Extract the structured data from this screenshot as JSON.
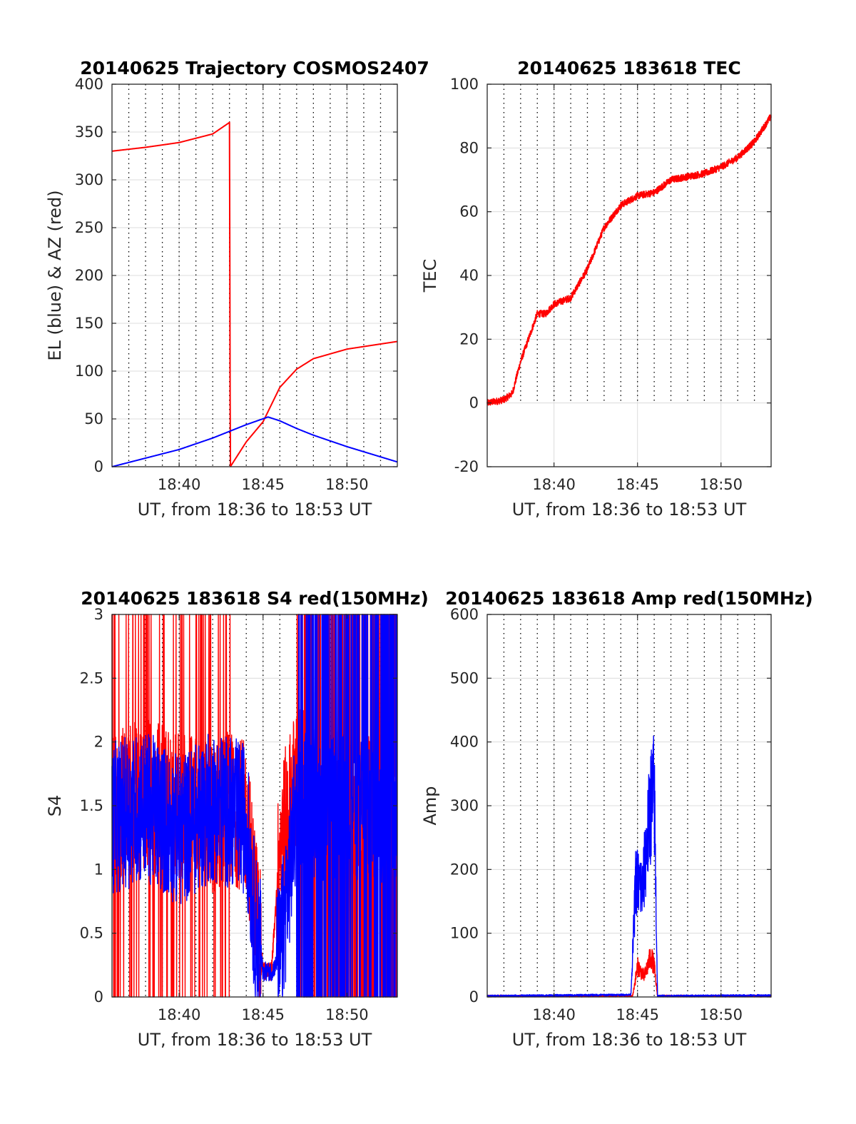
{
  "chart_data": [
    {
      "id": "traj",
      "type": "line",
      "title": "20140625 Trajectory COSMOS2407",
      "xlabel": "UT, from 18:36 to 18:53 UT",
      "ylabel": "EL (blue) & AZ (red)",
      "xlim": [
        "18:36",
        "18:53"
      ],
      "ylim": [
        0,
        400
      ],
      "yticks": [
        0,
        50,
        100,
        150,
        200,
        250,
        300,
        350,
        400
      ],
      "xticks": [
        "18:40",
        "18:45",
        "18:50"
      ],
      "grid": true,
      "colors": {
        "az": "#ff0000",
        "el": "#0000ff"
      },
      "series": [
        {
          "key": "az",
          "x": [
            "18:36",
            "18:38",
            "18:40",
            "18:42",
            "18:43",
            "18:43.05",
            "18:44",
            "18:45",
            "18:46",
            "18:47",
            "18:48",
            "18:50",
            "18:53"
          ],
          "values": [
            330,
            334,
            339,
            348,
            360,
            0,
            26,
            47,
            83,
            102,
            113,
            123,
            131
          ]
        },
        {
          "key": "el",
          "x": [
            "18:36",
            "18:38",
            "18:40",
            "18:42",
            "18:44",
            "18:45.3",
            "18:46",
            "18:47",
            "18:48",
            "18:50",
            "18:53"
          ],
          "values": [
            0,
            9,
            18,
            30,
            44,
            52,
            48,
            40,
            33,
            21,
            5
          ]
        }
      ]
    },
    {
      "id": "tec",
      "type": "line",
      "title": "20140625 183618 TEC",
      "xlabel": "UT, from 18:36 to 18:53 UT",
      "ylabel": "TEC",
      "xlim": [
        "18:36",
        "18:53"
      ],
      "ylim": [
        -20,
        100
      ],
      "yticks": [
        -20,
        0,
        20,
        40,
        60,
        80,
        100
      ],
      "xticks": [
        "18:40",
        "18:45",
        "18:50"
      ],
      "grid": true,
      "colors": {
        "tec": "#ff0000"
      },
      "series": [
        {
          "key": "tec",
          "x": [
            "18:36",
            "18:37",
            "18:37.5",
            "18:38",
            "18:39",
            "18:39.5",
            "18:40",
            "18:41",
            "18:42",
            "18:43",
            "18:44",
            "18:45",
            "18:46",
            "18:47",
            "18:48",
            "18:49",
            "18:50",
            "18:51",
            "18:52",
            "18:53"
          ],
          "values": [
            0,
            1,
            3,
            13,
            28,
            28,
            31,
            33,
            42,
            55,
            62,
            65,
            66,
            70,
            71,
            72,
            74,
            77,
            82,
            90
          ]
        }
      ]
    },
    {
      "id": "s4",
      "type": "line",
      "title": "20140625 183618 S4 red(150MHz)",
      "xlabel": "UT, from 18:36 to 18:53 UT",
      "ylabel": "S4",
      "xlim": [
        "18:36",
        "18:53"
      ],
      "ylim": [
        0,
        3
      ],
      "yticks": [
        0,
        0.5,
        1,
        1.5,
        2,
        2.5,
        3
      ],
      "xticks": [
        "18:40",
        "18:45",
        "18:50"
      ],
      "grid": true,
      "colors": {
        "s4_red": "#ff0000",
        "s4_blue": "#0000ff"
      },
      "series": [
        {
          "key": "s4_red",
          "x": [
            "18:36",
            "18:38",
            "18:40",
            "18:42",
            "18:43",
            "18:44",
            "18:45",
            "18:45.5",
            "18:46",
            "18:47",
            "18:50",
            "18:53"
          ],
          "values": [
            1.5,
            1.6,
            1.5,
            1.4,
            1.5,
            1.4,
            0.2,
            0.2,
            1.2,
            1.7,
            1.5,
            1.5
          ]
        },
        {
          "key": "s4_blue",
          "x": [
            "18:36",
            "18:38",
            "18:40",
            "18:42",
            "18:44",
            "18:44.5",
            "18:45",
            "18:45.5",
            "18:46",
            "18:47",
            "18:50",
            "18:53"
          ],
          "values": [
            1.4,
            1.5,
            1.3,
            1.5,
            1.4,
            0.6,
            0.2,
            0.2,
            0.3,
            1.5,
            1.5,
            1.5
          ]
        }
      ]
    },
    {
      "id": "amp",
      "type": "line",
      "title": "20140625 183618 Amp red(150MHz)",
      "xlabel": "UT, from 18:36 to 18:53 UT",
      "ylabel": "Amp",
      "xlim": [
        "18:36",
        "18:53"
      ],
      "ylim": [
        0,
        600
      ],
      "yticks": [
        0,
        100,
        200,
        300,
        400,
        500,
        600
      ],
      "xticks": [
        "18:40",
        "18:45",
        "18:50"
      ],
      "grid": true,
      "colors": {
        "amp_red": "#ff0000",
        "amp_blue": "#0000ff"
      },
      "series": [
        {
          "key": "amp_red",
          "x": [
            "18:36",
            "18:44.7",
            "18:45",
            "18:45.4",
            "18:45.8",
            "18:46",
            "18:46.2",
            "18:53"
          ],
          "values": [
            0,
            0,
            60,
            40,
            80,
            60,
            0,
            0
          ]
        },
        {
          "key": "amp_blue",
          "x": [
            "18:36",
            "18:44.6",
            "18:44.9",
            "18:45.3",
            "18:45.8",
            "18:46",
            "18:46.2",
            "18:53"
          ],
          "values": [
            0,
            2,
            230,
            210,
            380,
            400,
            0,
            1
          ]
        }
      ]
    }
  ]
}
